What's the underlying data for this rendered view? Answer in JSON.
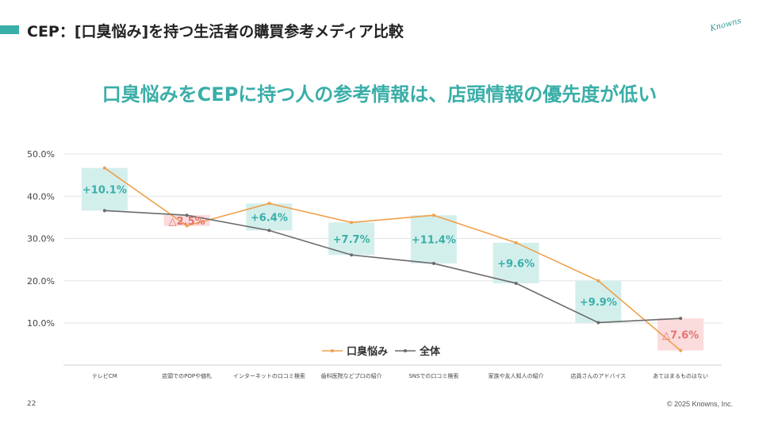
{
  "header": {
    "title": "CEP：[口臭悩み]を持つ生活者の購買参考メディア比較",
    "logo_text": "Knowns"
  },
  "headline": "口臭悩みをCEPに持つ人の参考情報は、店頭情報の優先度が低い",
  "chart_data": {
    "type": "line",
    "categories": [
      "テレビCM",
      "店頭でのPOPや値札",
      "インターネットの口コミ検索",
      "歯科医院などプロの紹介",
      "SNSでの口コミ検索",
      "家族や友人知人の紹介",
      "店員さんのアドバイス",
      "あてはまるものはない"
    ],
    "series": [
      {
        "name": "口臭悩み",
        "color": "#f0a04b",
        "values": [
          46.7,
          33.0,
          38.3,
          33.8,
          35.5,
          29.0,
          20.0,
          3.5
        ]
      },
      {
        "name": "全体",
        "color": "#6b6b6b",
        "values": [
          36.6,
          35.5,
          31.9,
          26.1,
          24.1,
          19.4,
          10.1,
          11.1
        ]
      }
    ],
    "differences": [
      "+10.1%",
      "△2.5%",
      "+6.4%",
      "+7.7%",
      "+11.4%",
      "+9.6%",
      "+9.9%",
      "△7.6%"
    ],
    "difference_signs": [
      "pos",
      "neg",
      "pos",
      "pos",
      "pos",
      "pos",
      "pos",
      "neg"
    ],
    "colors": {
      "positive_box": "#d3efec",
      "positive_text": "#3aaea8",
      "negative_box": "#fbdcdc",
      "negative_text": "#e57373"
    },
    "ytick_labels": [
      "10.0%",
      "20.0%",
      "30.0%",
      "40.0%",
      "50.0%"
    ],
    "yticks": [
      10,
      20,
      30,
      40,
      50
    ],
    "ylim": [
      0,
      50
    ],
    "grid": true,
    "legend_position": "bottom-center"
  },
  "footer": {
    "page_number": "22",
    "copyright": "© 2025 Knowns, Inc."
  }
}
